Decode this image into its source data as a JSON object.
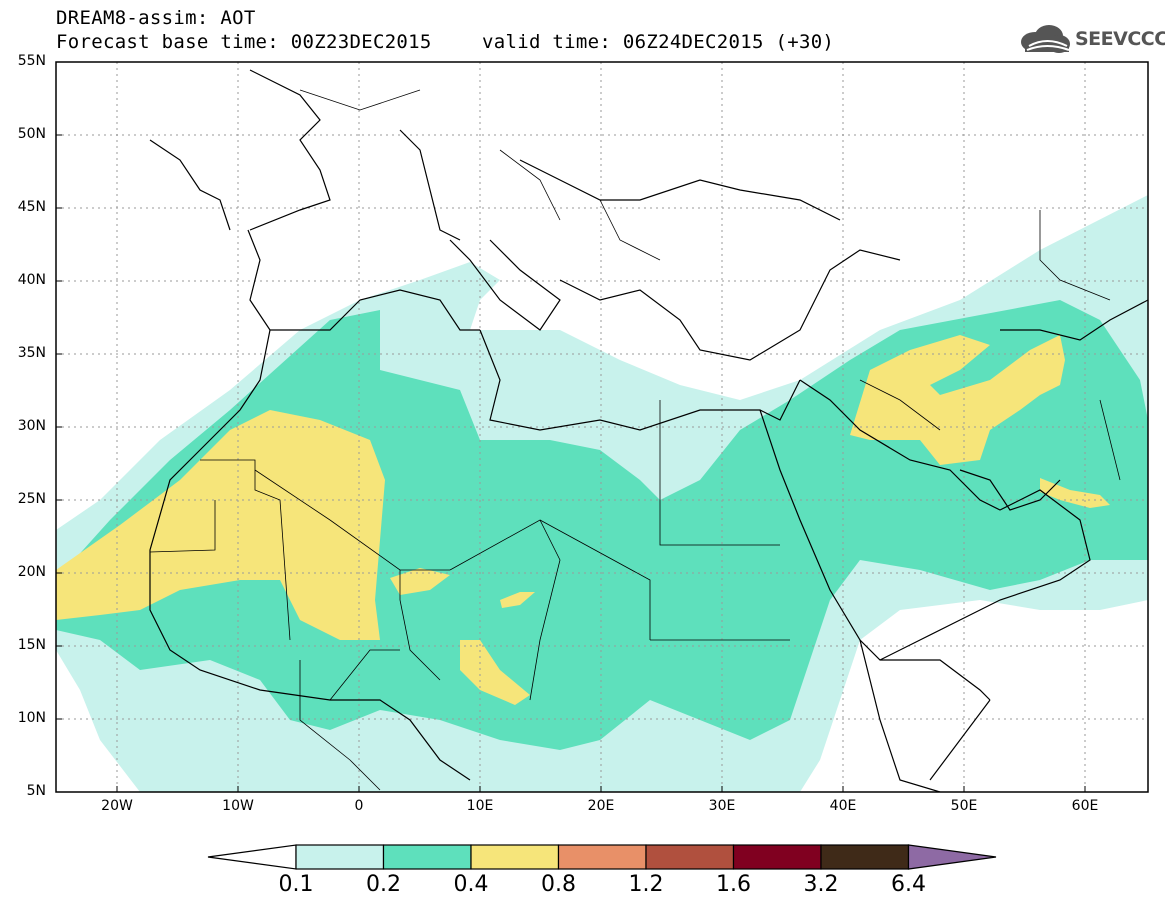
{
  "header": {
    "title": "DREAM8-assim: AOT",
    "forecast": "Forecast base time: 00Z23DEC2015",
    "valid": "valid time: 06Z24DEC2015 (+30)"
  },
  "logo": {
    "text": "SEEVCCC",
    "icon": "cloud-logo-icon"
  },
  "map": {
    "lat_labels": [
      "55N",
      "50N",
      "45N",
      "40N",
      "35N",
      "30N",
      "25N",
      "20N",
      "15N",
      "10N",
      "5N"
    ],
    "lon_labels": [
      "20W",
      "10W",
      "0",
      "10E",
      "20E",
      "30E",
      "40E",
      "50E",
      "60E"
    ],
    "lon_range": [
      -25,
      65
    ],
    "lat_range": [
      5,
      55
    ]
  },
  "colorbar": {
    "labels": [
      "0.1",
      "0.2",
      "0.4",
      "0.8",
      "1.2",
      "1.6",
      "3.2",
      "6.4"
    ],
    "colors": [
      "#ffffff",
      "#c8f2ec",
      "#5ee0bc",
      "#f6e57a",
      "#e89068",
      "#b0503e",
      "#800020",
      "#3f2a18",
      "#8e6aa4"
    ]
  },
  "fill_colors": {
    "low": "#c8f2ec",
    "mid": "#5ee0bc",
    "high": "#f6e57a"
  }
}
